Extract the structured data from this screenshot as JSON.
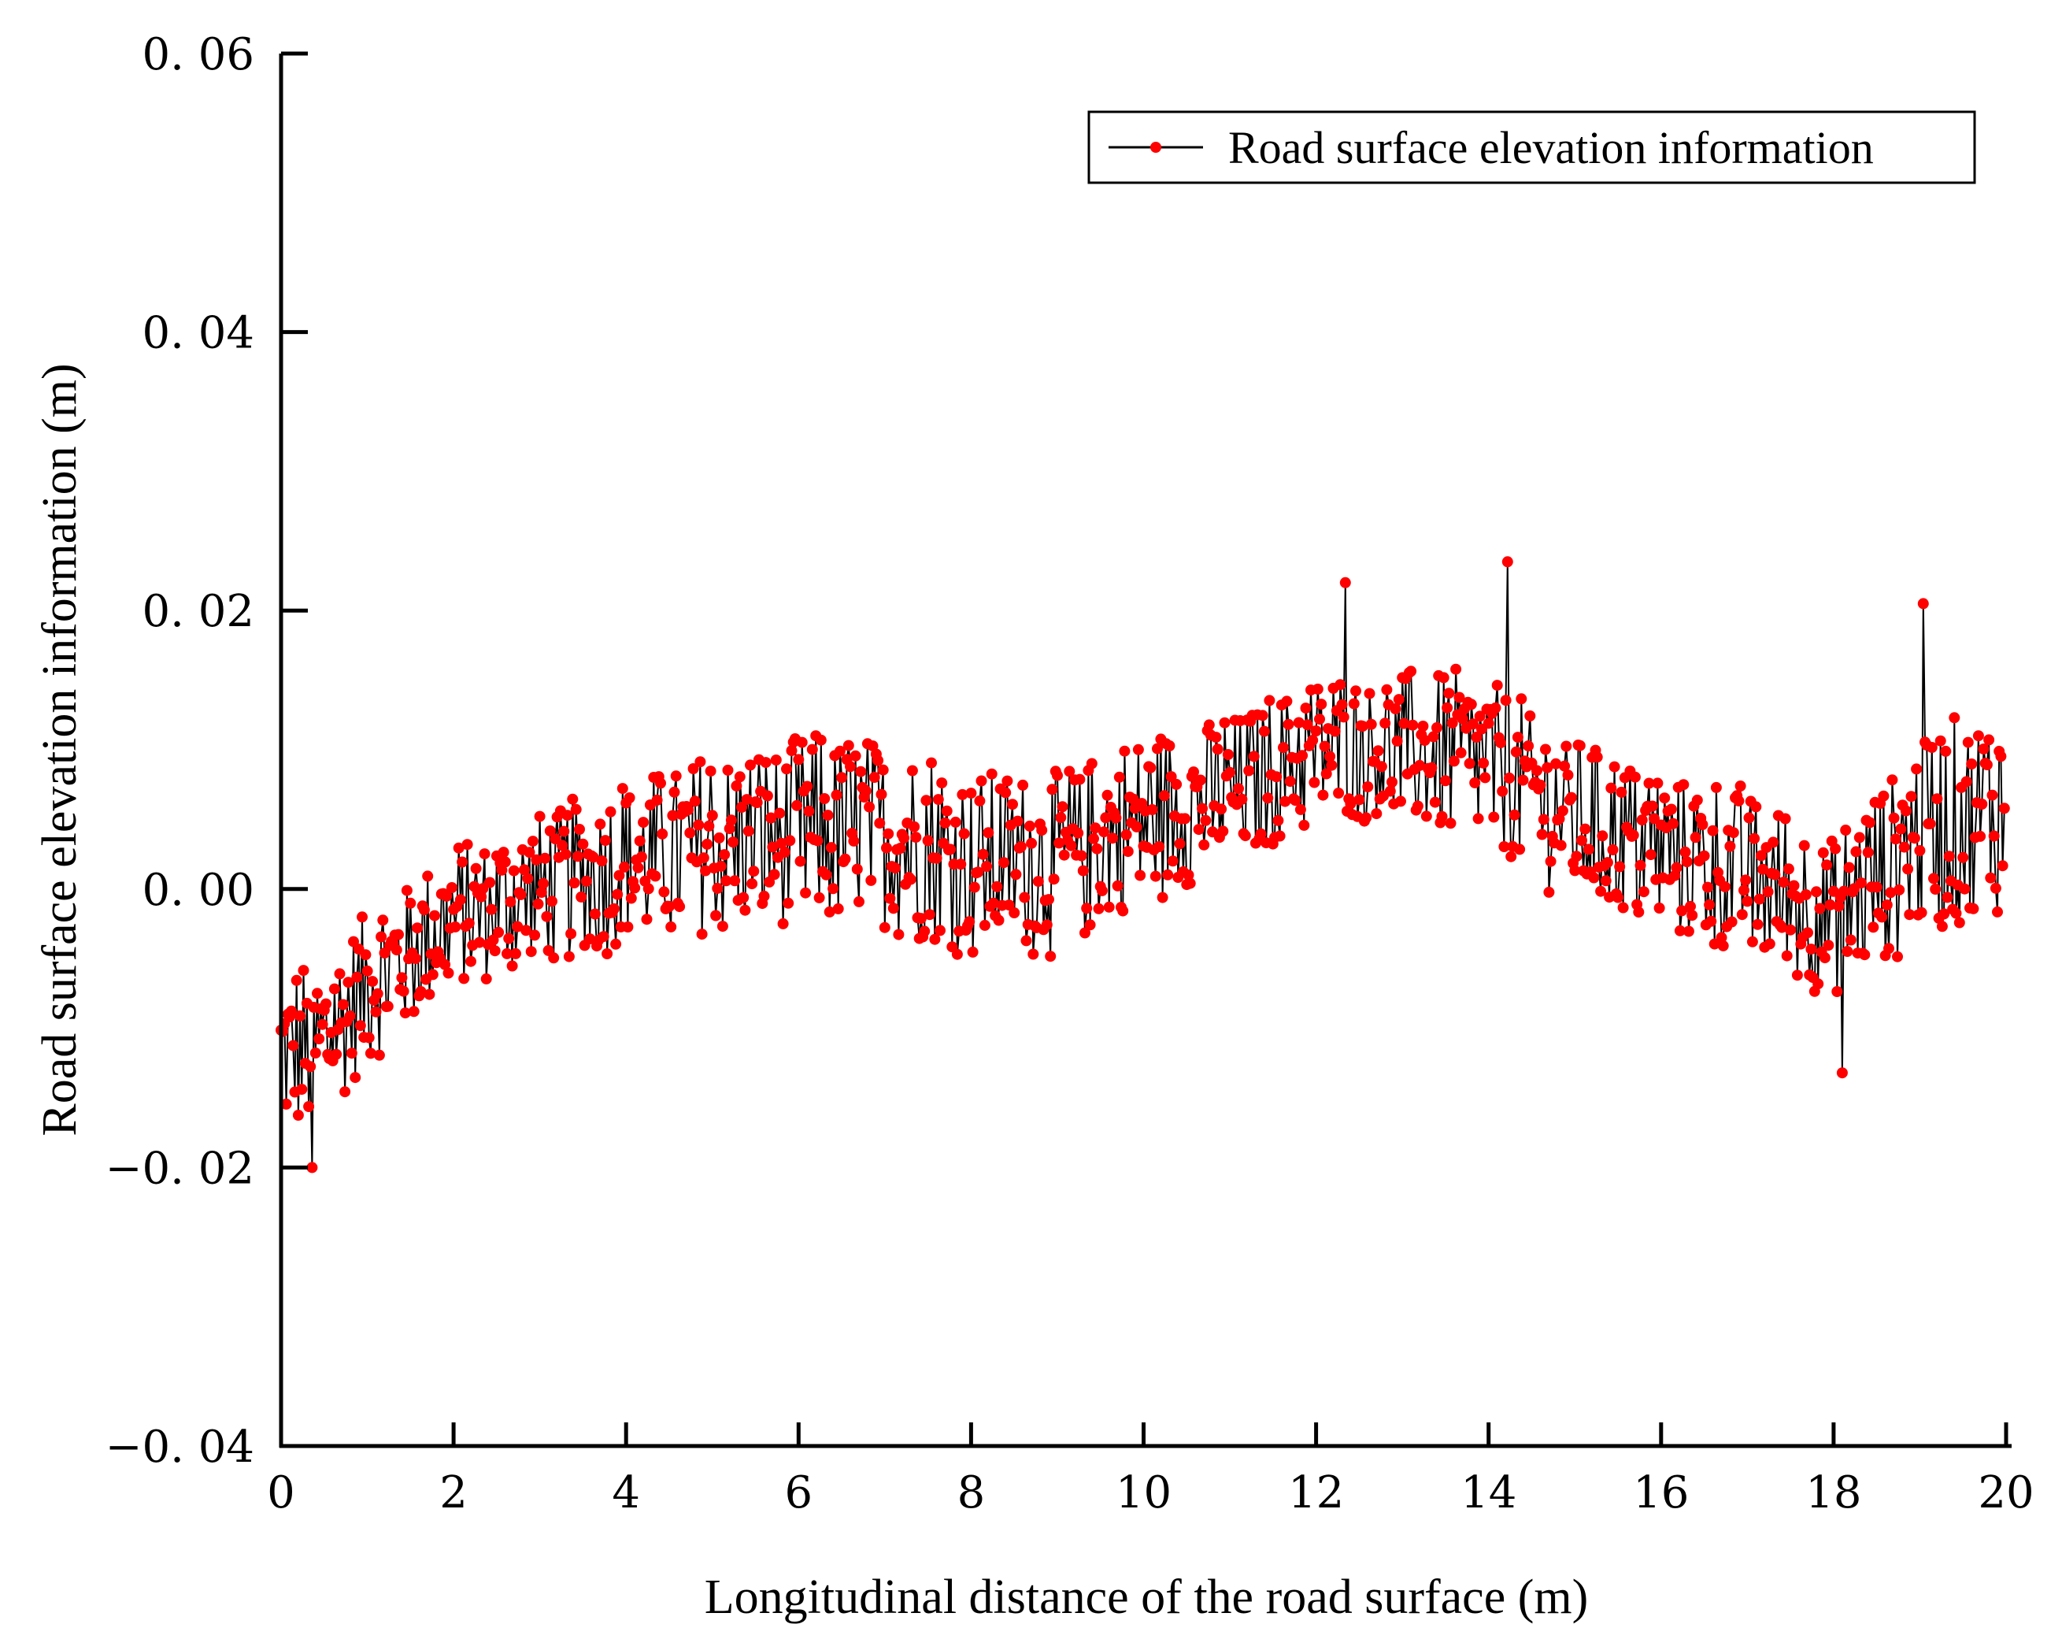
{
  "chart_data": {
    "type": "line",
    "title": "",
    "xlabel": "Longitudinal distance of the road surface (m)",
    "ylabel": "Road surface elevation information (m)",
    "xlim": [
      0,
      20
    ],
    "ylim": [
      -0.04,
      0.06
    ],
    "grid": false,
    "legend_position": "top-right",
    "x_ticks": [
      0,
      2,
      4,
      6,
      8,
      10,
      12,
      14,
      16,
      18,
      20
    ],
    "x_tick_labels": [
      "0",
      "2",
      "4",
      "6",
      "8",
      "10",
      "12",
      "14",
      "16",
      "18",
      "20"
    ],
    "y_ticks": [
      -0.04,
      -0.02,
      0.0,
      0.02,
      0.04,
      0.06
    ],
    "y_tick_labels": [
      "−0. 04",
      "−0. 02",
      "0. 00",
      "0. 02",
      "0. 04",
      "0. 06"
    ],
    "series": [
      {
        "name": "Road surface elevation information",
        "line_color": "#000000",
        "marker_color": "#ff0000",
        "n_points": 1000,
        "x_start": 0,
        "x_step": 0.02,
        "trend_x": [
          0,
          0.5,
          1,
          2,
          3,
          4,
          5,
          6,
          7,
          8,
          9,
          10,
          11,
          12,
          13,
          14,
          15,
          16,
          17,
          18,
          19,
          20
        ],
        "trend_y": [
          -0.012,
          -0.011,
          -0.007,
          -0.002,
          0.0,
          0.002,
          0.003,
          0.004,
          0.004,
          0.002,
          0.002,
          0.005,
          0.007,
          0.01,
          0.01,
          0.009,
          0.005,
          0.003,
          0.001,
          -0.002,
          0.004,
          0.006
        ],
        "amplitude_x": [
          0,
          2,
          6,
          10,
          12,
          14,
          16,
          18,
          20
        ],
        "amplitude_y": [
          0.006,
          0.005,
          0.007,
          0.006,
          0.005,
          0.006,
          0.006,
          0.006,
          0.008
        ],
        "y_min": -0.02,
        "y_max": 0.0235
      }
    ]
  }
}
